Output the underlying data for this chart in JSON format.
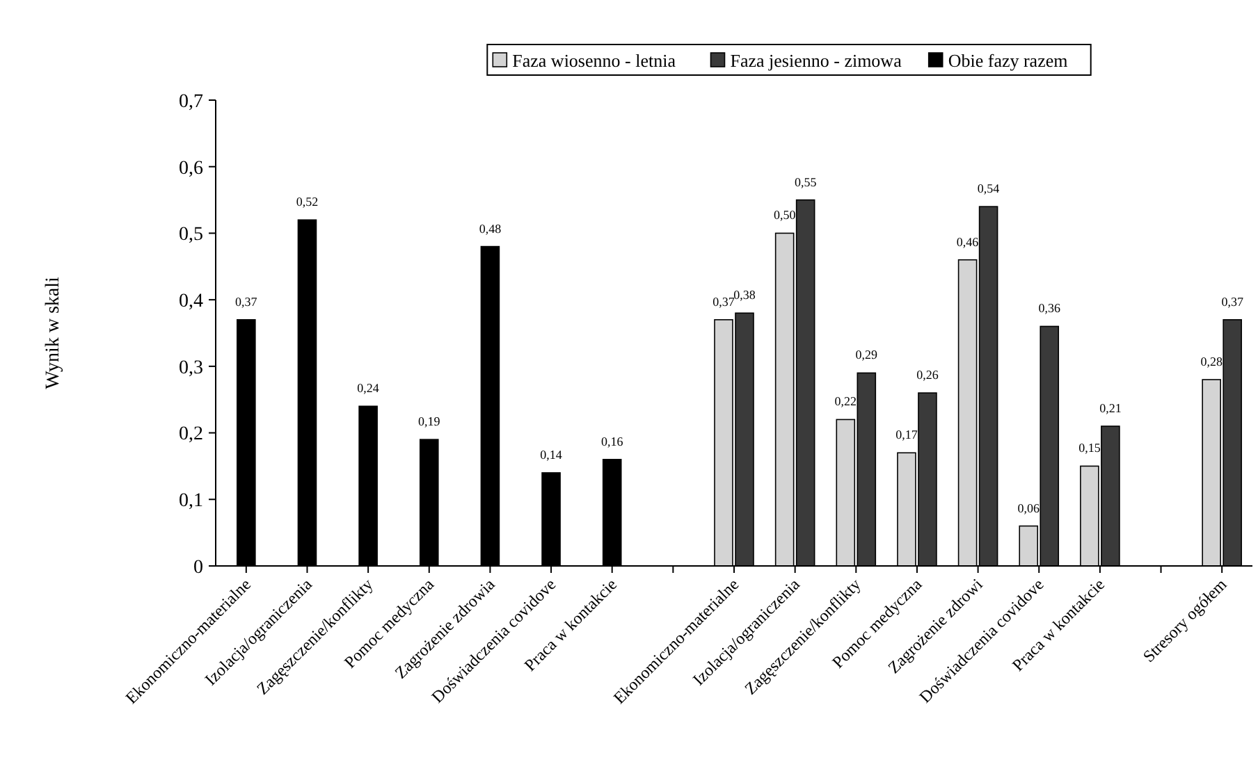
{
  "chart_data": {
    "type": "bar",
    "ylabel": "Wynik w skali",
    "categories": [
      "Ekonomiczno-materialne",
      "Izolacja/ograniczenia",
      "Zagęszczenie/konflikty",
      "Pomoc medyczna",
      "Zagrożenie zdrowia",
      "Doświadczenia covidove",
      "Praca w kontakcie",
      null,
      "Ekonomiczno-materialne",
      "Izolacja/ograniczenia",
      "Zagęszczenie/konflikty",
      "Pomoc medyczna",
      "Zagrożenie zdrowi",
      "Doświadczenia covidove",
      "Praca w kontakcie",
      null,
      "Stresory ogółem"
    ],
    "series": [
      {
        "name": "Faza wiosenno - letnia",
        "color": "#d4d4d4",
        "values": [
          null,
          null,
          null,
          null,
          null,
          null,
          null,
          null,
          0.37,
          0.5,
          0.22,
          0.17,
          0.46,
          0.06,
          0.15,
          null,
          0.28
        ],
        "value_labels": [
          null,
          null,
          null,
          null,
          null,
          null,
          null,
          null,
          "0,37",
          "0,50",
          "0,22",
          "0,17",
          "0,46",
          "0,06",
          "0,15",
          null,
          "0,28"
        ]
      },
      {
        "name": "Faza jesienno - zimowa",
        "color": "#3a3a3a",
        "values": [
          null,
          null,
          null,
          null,
          null,
          null,
          null,
          null,
          0.38,
          0.55,
          0.29,
          0.26,
          0.54,
          0.36,
          0.21,
          null,
          0.37
        ],
        "value_labels": [
          null,
          null,
          null,
          null,
          null,
          null,
          null,
          null,
          "0,38",
          "0,55",
          "0,29",
          "0,26",
          "0,54",
          "0,36",
          "0,21",
          null,
          "0,37"
        ]
      },
      {
        "name": "Obie fazy razem",
        "color": "#000000",
        "values": [
          0.37,
          0.52,
          0.24,
          0.19,
          0.48,
          0.14,
          0.16,
          null,
          null,
          null,
          null,
          null,
          null,
          null,
          null,
          null,
          null
        ],
        "value_labels": [
          "0,37",
          "0,52",
          "0,24",
          "0,19",
          "0,48",
          "0,14",
          "0,16",
          null,
          null,
          null,
          null,
          null,
          null,
          null,
          null,
          null,
          null
        ]
      }
    ],
    "ylim": [
      0,
      0.7
    ],
    "yticks": [
      0,
      {
        "value": 0.1,
        "label": "0,1"
      },
      {
        "value": 0.2,
        "label": "0,2"
      },
      {
        "value": 0.3,
        "label": "0,3"
      },
      {
        "value": 0.4,
        "label": "0,4"
      },
      {
        "value": 0.5,
        "label": "0,5"
      },
      {
        "value": 0.6,
        "label": "0,6"
      },
      {
        "value": 0.7,
        "label": "0,7"
      }
    ],
    "legend": "top",
    "grid": false
  }
}
